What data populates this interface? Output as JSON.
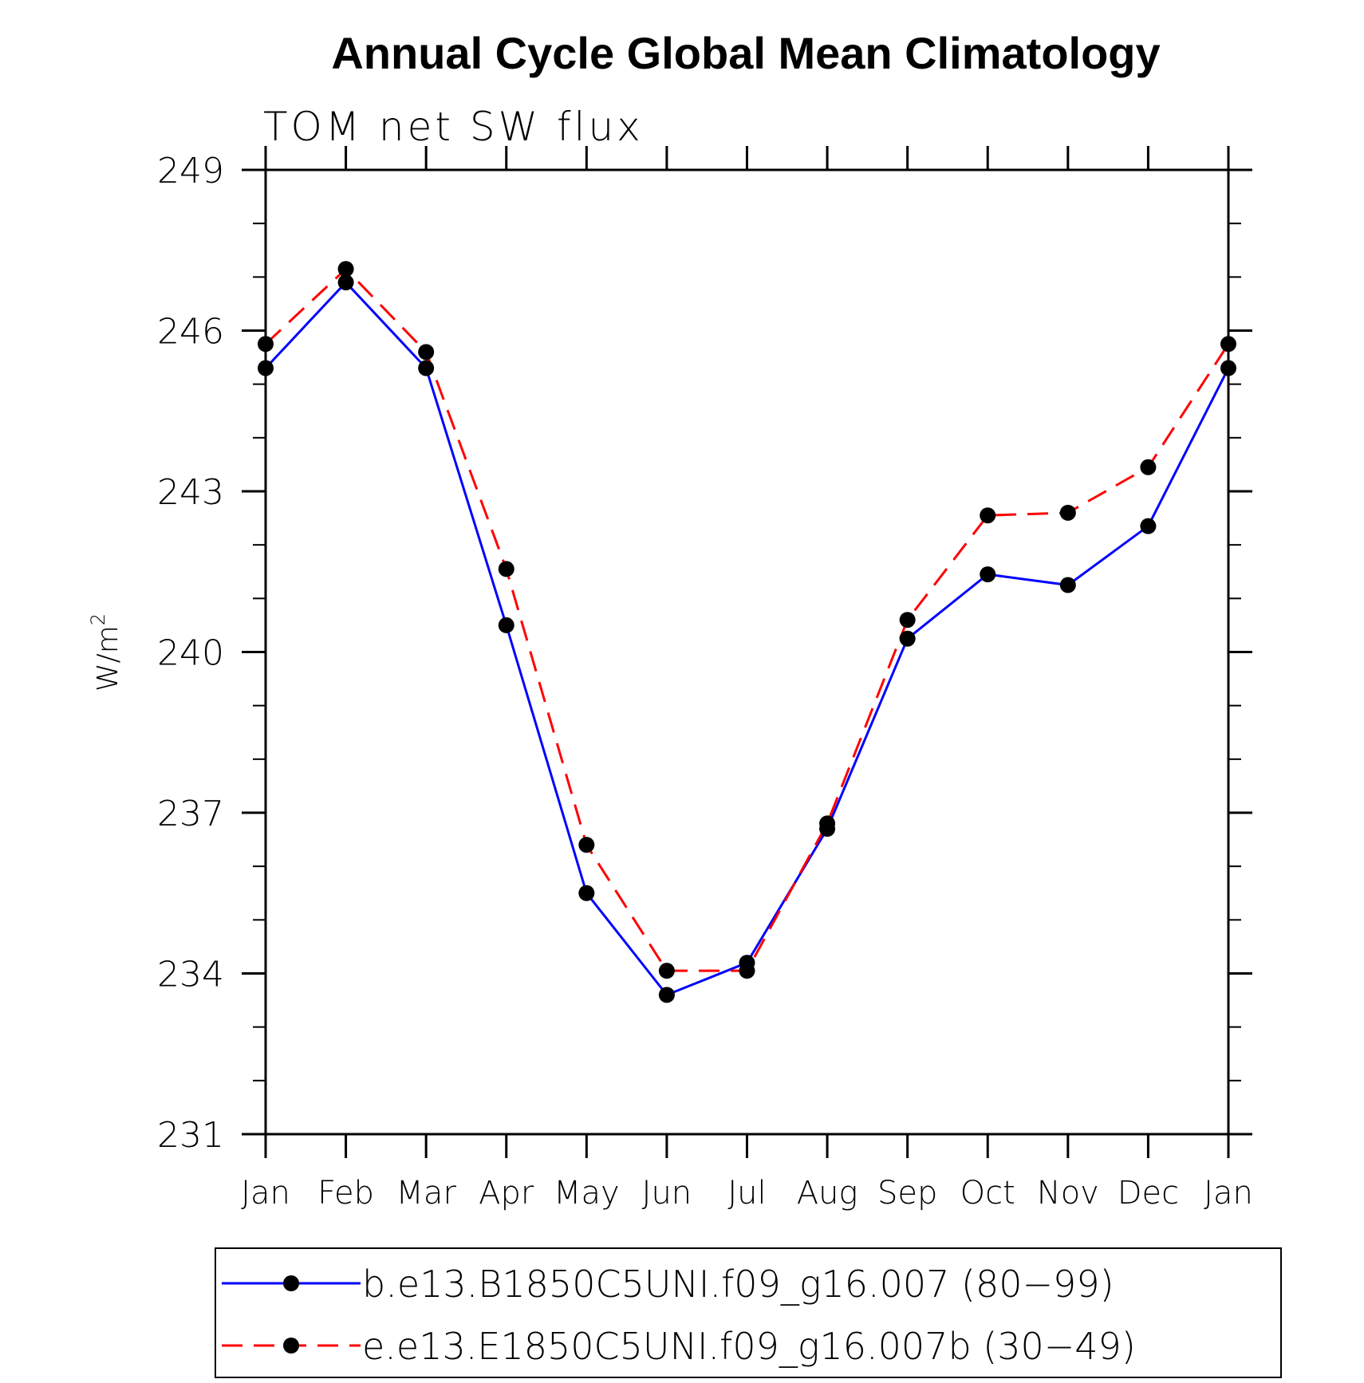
{
  "chart_data": {
    "type": "line",
    "title": "Annual Cycle Global Mean Climatology",
    "subtitle": "TOM net SW flux",
    "xlabel": "",
    "ylabel": "W/m",
    "ylabel_superscript": "2",
    "categories": [
      "Jan",
      "Feb",
      "Mar",
      "Apr",
      "May",
      "Jun",
      "Jul",
      "Aug",
      "Sep",
      "Oct",
      "Nov",
      "Dec",
      "Jan"
    ],
    "ylim": [
      231,
      249
    ],
    "yticks": [
      "231",
      "234",
      "237",
      "240",
      "243",
      "246",
      "249"
    ],
    "series": [
      {
        "name": "b.e13.B1850C5UNI.f09_g16.007 (80−99)",
        "color": "#0000ff",
        "dash": "solid",
        "marker": "filled-circle",
        "values": [
          245.3,
          246.9,
          245.3,
          240.5,
          235.5,
          233.6,
          234.2,
          236.7,
          240.25,
          241.45,
          241.25,
          242.35,
          245.3
        ]
      },
      {
        "name": "e.e13.E1850C5UNI.f09_g16.007b (30−49)",
        "color": "#ff0000",
        "dash": "dashed",
        "marker": "filled-circle",
        "values": [
          245.75,
          247.15,
          245.6,
          241.55,
          236.4,
          234.05,
          234.05,
          236.8,
          240.6,
          242.55,
          242.6,
          243.45,
          245.75
        ]
      }
    ],
    "grid": false,
    "legend_position": "bottom"
  }
}
